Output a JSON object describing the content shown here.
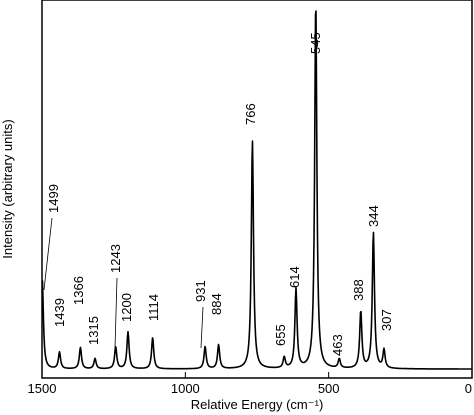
{
  "chart_data": {
    "type": "line",
    "title": "",
    "xlabel": "Relative Energy (cm⁻¹)",
    "ylabel": "Intensity (arbitrary units)",
    "xlim": [
      1500,
      0
    ],
    "x_reversed": true,
    "x_ticks": [
      1500,
      1000,
      500,
      0
    ],
    "ylim": [
      0,
      1
    ],
    "y_ticks_visible": false,
    "grid": false,
    "baseline": 0.008,
    "peaks": [
      {
        "x": 1499,
        "height": 0.245,
        "label": "1499"
      },
      {
        "x": 1439,
        "height": 0.045,
        "label": "1439"
      },
      {
        "x": 1366,
        "height": 0.058,
        "label": "1366"
      },
      {
        "x": 1315,
        "height": 0.028,
        "label": "1315"
      },
      {
        "x": 1243,
        "height": 0.06,
        "label": "1243"
      },
      {
        "x": 1200,
        "height": 0.1,
        "label": "1200"
      },
      {
        "x": 1114,
        "height": 0.085,
        "label": "1114"
      },
      {
        "x": 931,
        "height": 0.06,
        "label": "931"
      },
      {
        "x": 884,
        "height": 0.065,
        "label": "884"
      },
      {
        "x": 766,
        "height": 0.62,
        "label": "766"
      },
      {
        "x": 655,
        "height": 0.03,
        "label": "655"
      },
      {
        "x": 614,
        "height": 0.215,
        "label": "614"
      },
      {
        "x": 545,
        "height": 1.0,
        "label": "545"
      },
      {
        "x": 463,
        "height": 0.025,
        "label": "463"
      },
      {
        "x": 388,
        "height": 0.155,
        "label": "388"
      },
      {
        "x": 344,
        "height": 0.37,
        "label": "344"
      },
      {
        "x": 307,
        "height": 0.05,
        "label": "307"
      }
    ]
  }
}
